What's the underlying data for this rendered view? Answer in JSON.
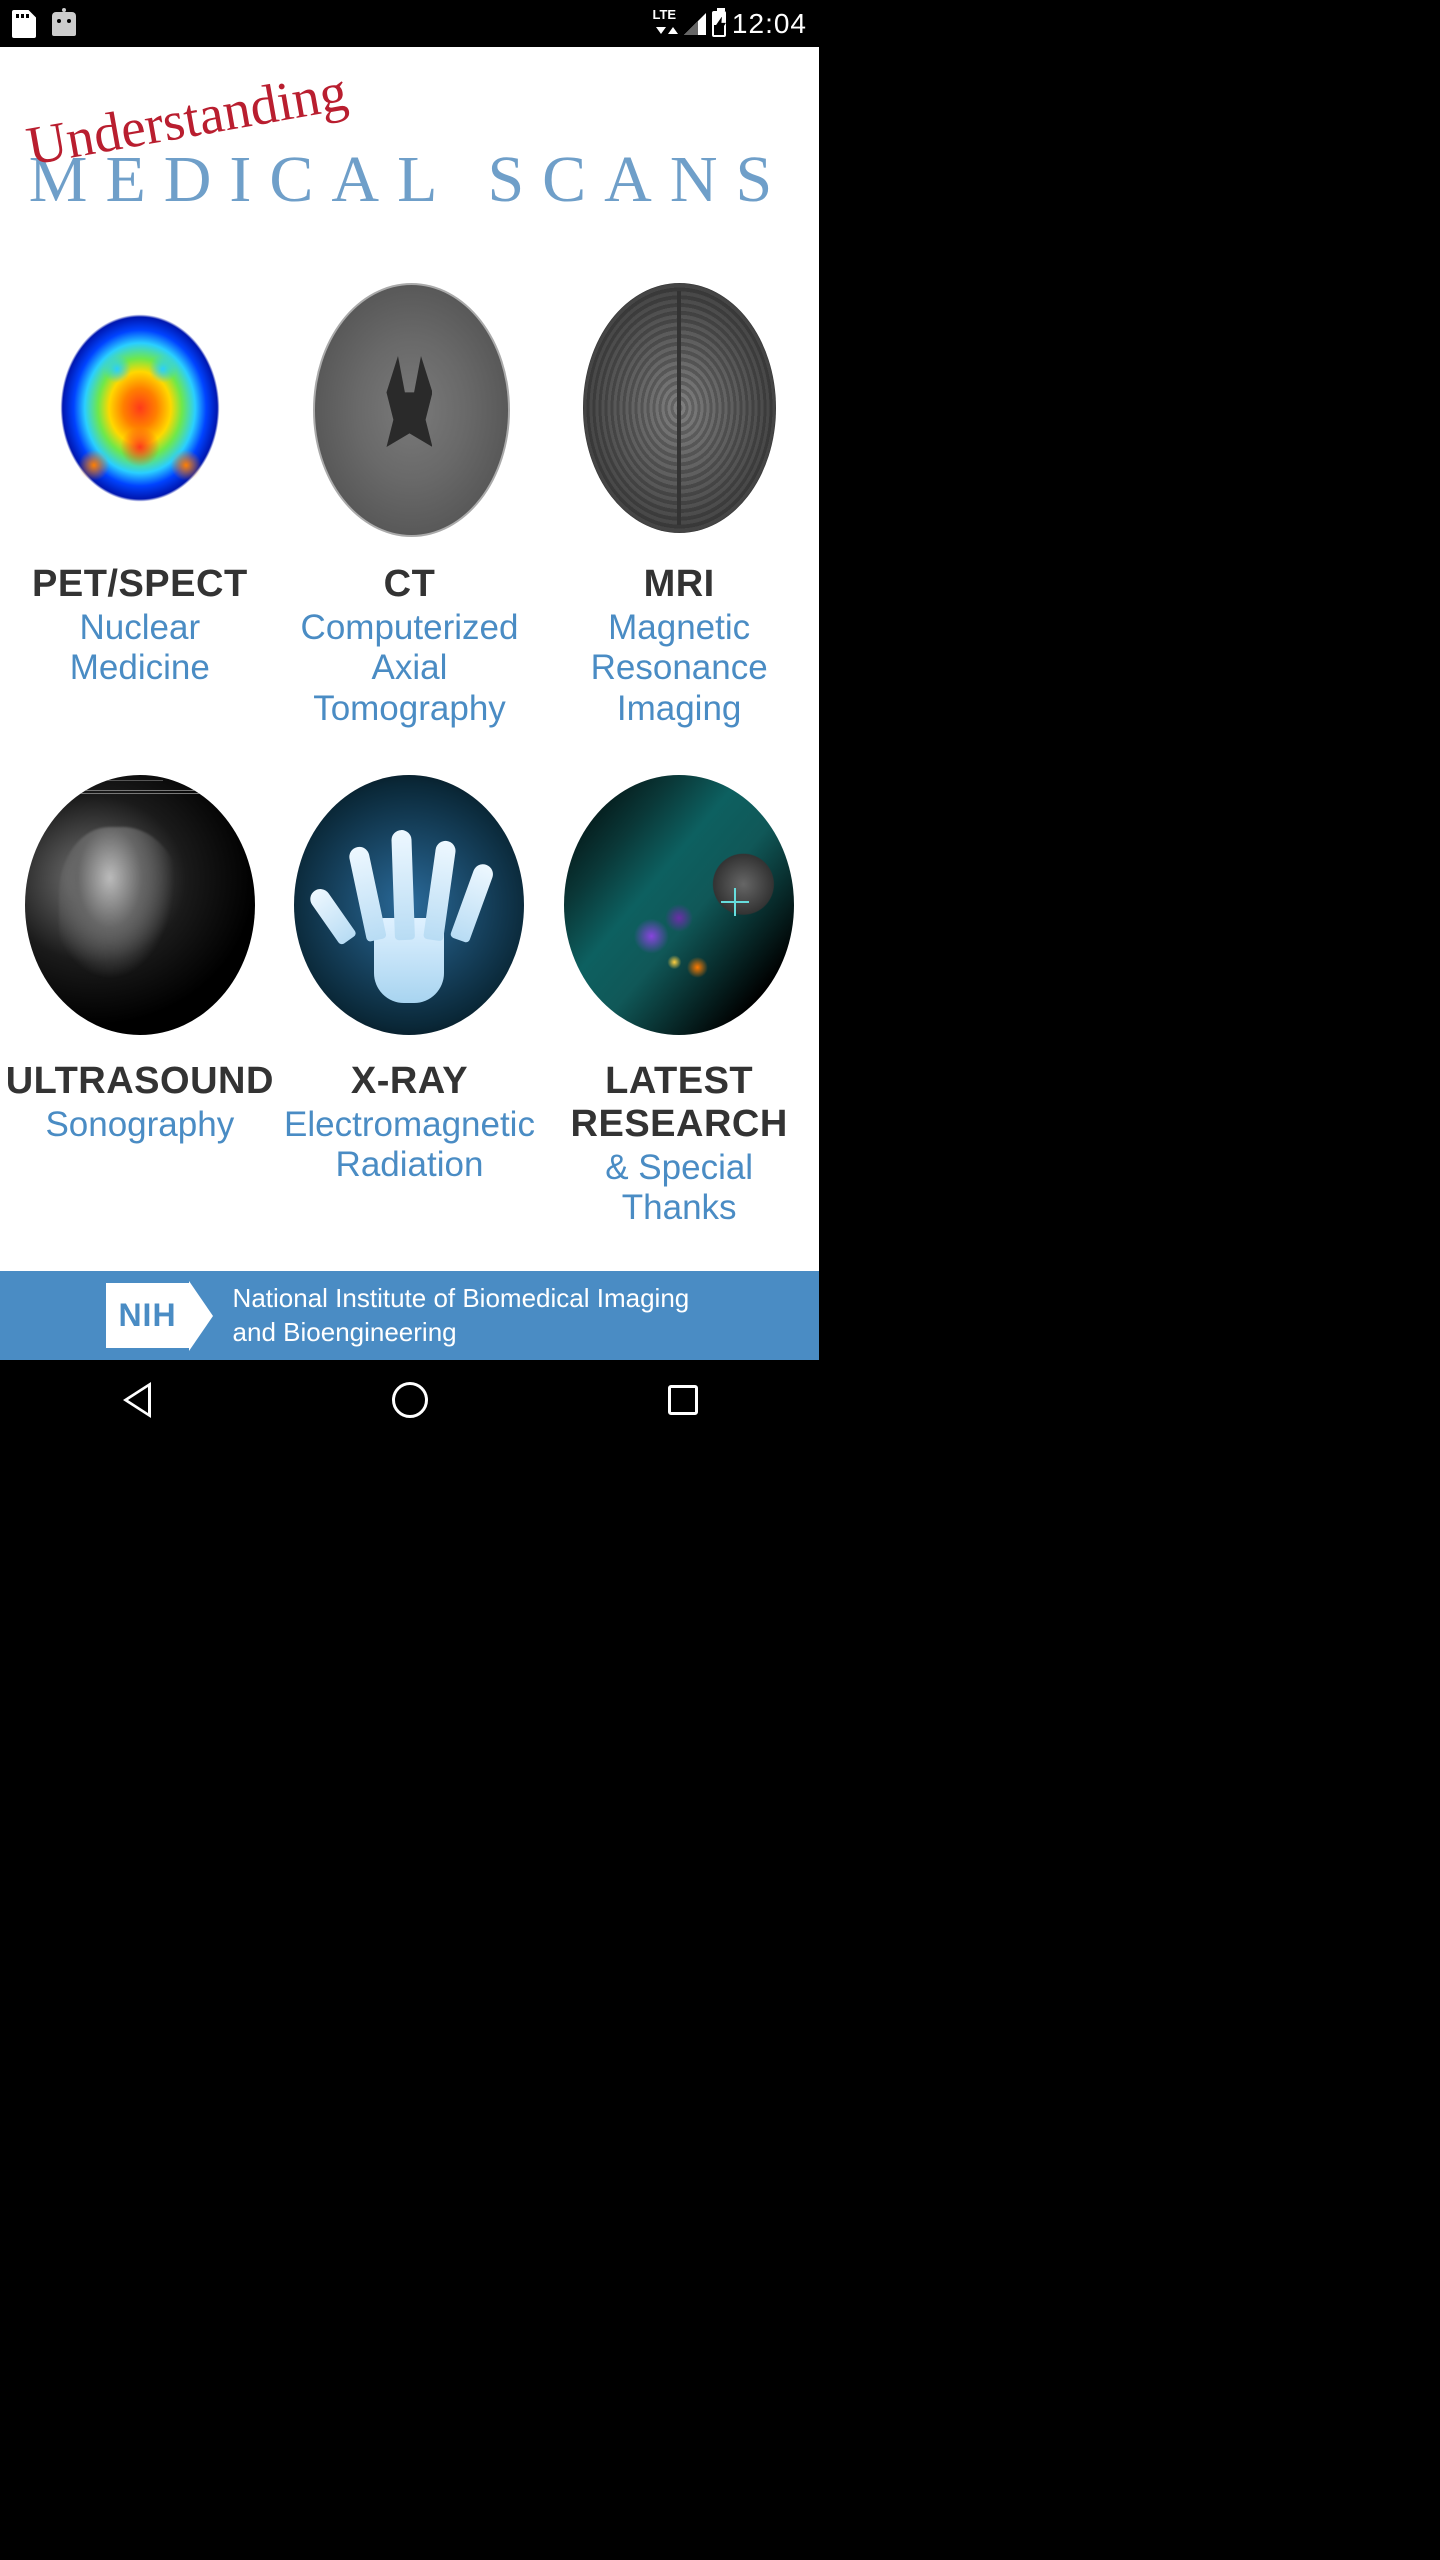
{
  "status": {
    "network_label": "LTE",
    "time": "12:04"
  },
  "header": {
    "script": "Understanding",
    "main": "MEDICAL SCANS"
  },
  "scans": [
    {
      "title": "PET/SPECT",
      "subtitle": "Nuclear Medicine",
      "img_class": "pet-img"
    },
    {
      "title": "CT",
      "subtitle": "Computerized\nAxial Tomography",
      "img_class": "ct-img"
    },
    {
      "title": "MRI",
      "subtitle": "Magnetic\nResonance\nImaging",
      "img_class": "mri-img"
    },
    {
      "title": "ULTRASOUND",
      "subtitle": "Sonography",
      "img_class": "us-img"
    },
    {
      "title": "X-RAY",
      "subtitle": "Electromagnetic\nRadiation",
      "img_class": "xray-img"
    },
    {
      "title": "LATEST\nRESEARCH",
      "subtitle": "& Special Thanks",
      "img_class": "lr-img"
    }
  ],
  "footer": {
    "logo": "NIH",
    "text": "National Institute of Biomedical Imaging and Bioengineering"
  },
  "colors": {
    "accent_blue": "#4a8cc4",
    "header_blue": "#6f9fc9",
    "header_red": "#b91e2f",
    "text_dark": "#333333"
  }
}
